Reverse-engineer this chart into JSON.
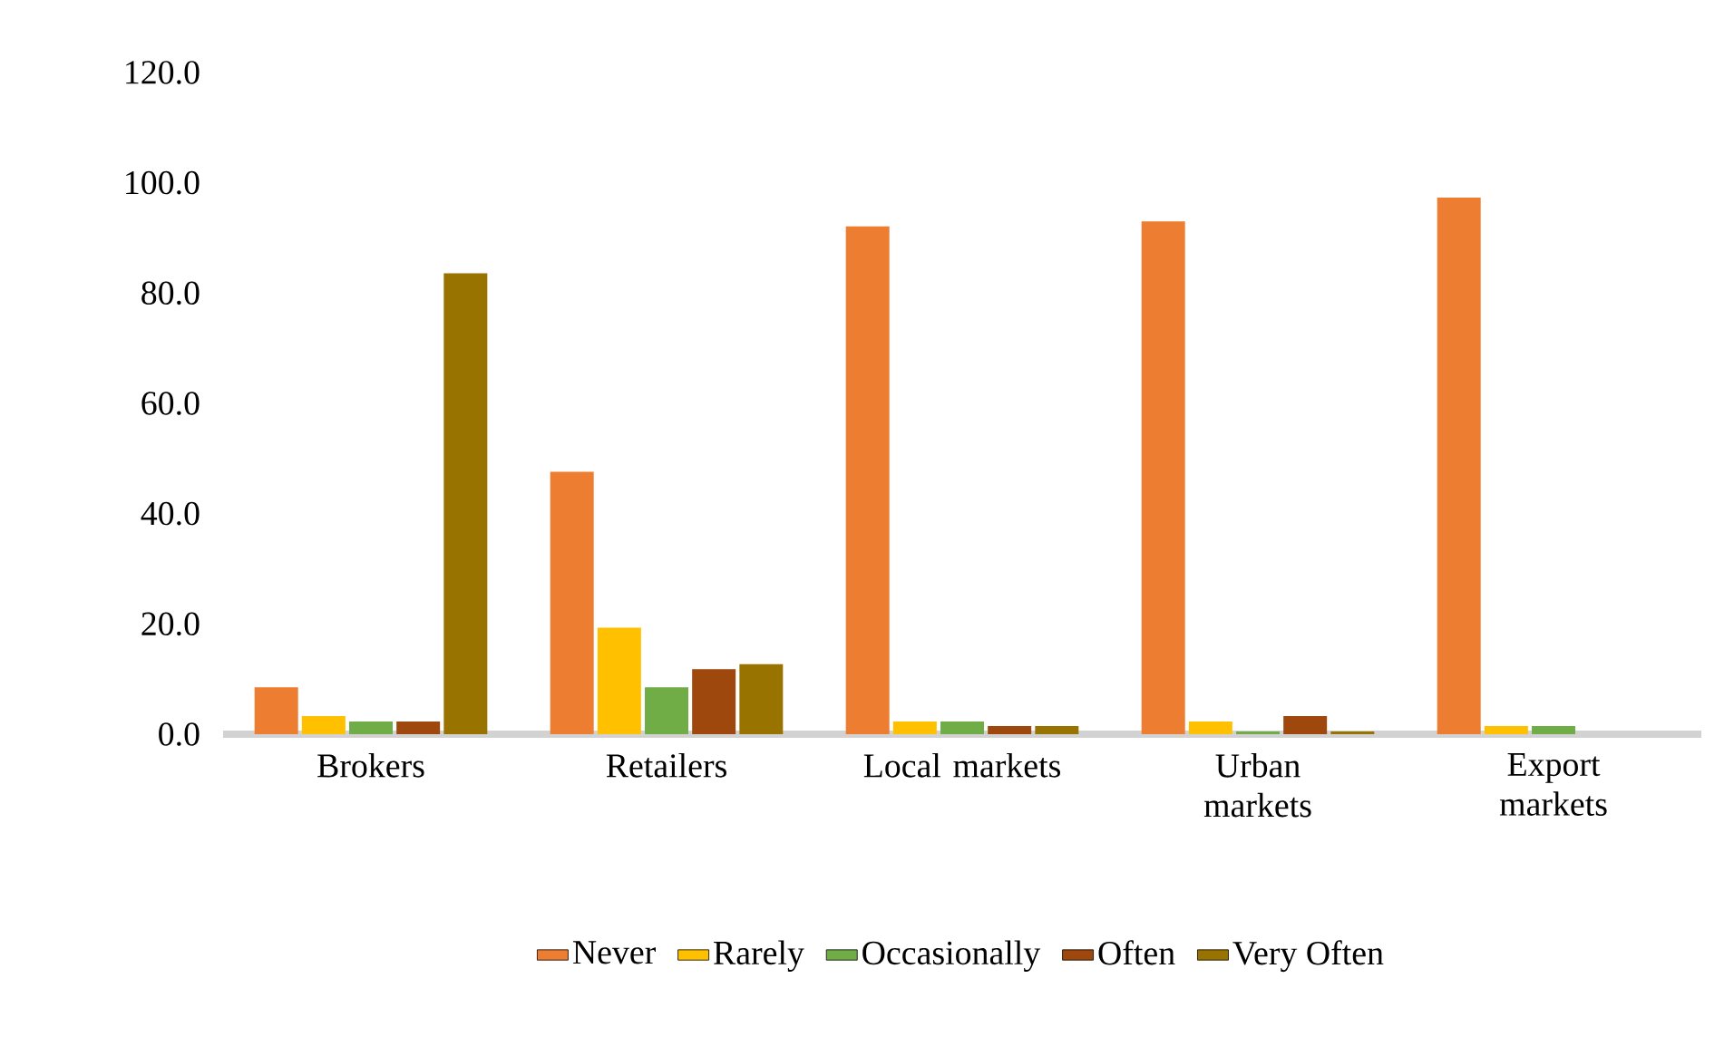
{
  "chart_data": {
    "type": "bar",
    "categories": [
      "Brokers",
      "Retailers",
      "Local markets",
      "Urban markets",
      "Export markets"
    ],
    "series": [
      {
        "name": "Never",
        "color": "#ed7d31",
        "values": [
          8.5,
          47.6,
          92.1,
          93.0,
          97.3
        ]
      },
      {
        "name": "Rarely",
        "color": "#ffc000",
        "values": [
          3.3,
          19.3,
          2.3,
          2.3,
          1.5
        ]
      },
      {
        "name": "Occasionally",
        "color": "#70ad47",
        "values": [
          2.3,
          8.5,
          2.3,
          0.5,
          1.5
        ]
      },
      {
        "name": "Often",
        "color": "#9e480e",
        "values": [
          2.3,
          11.8,
          1.5,
          3.3,
          0
        ]
      },
      {
        "name": "Very Often",
        "color": "#997300",
        "values": [
          83.6,
          12.7,
          1.5,
          0.5,
          0
        ]
      }
    ],
    "ylim": [
      0,
      120
    ],
    "yticks": [
      {
        "value": 0,
        "label": "0.0"
      },
      {
        "value": 20,
        "label": "20.0"
      },
      {
        "value": 40,
        "label": "40.0"
      },
      {
        "value": 60,
        "label": "60.0"
      },
      {
        "value": 80,
        "label": "80.0"
      },
      {
        "value": 100,
        "label": "100.0"
      },
      {
        "value": 120,
        "label": "120.0"
      }
    ],
    "grid": false,
    "legend": "bottom"
  }
}
